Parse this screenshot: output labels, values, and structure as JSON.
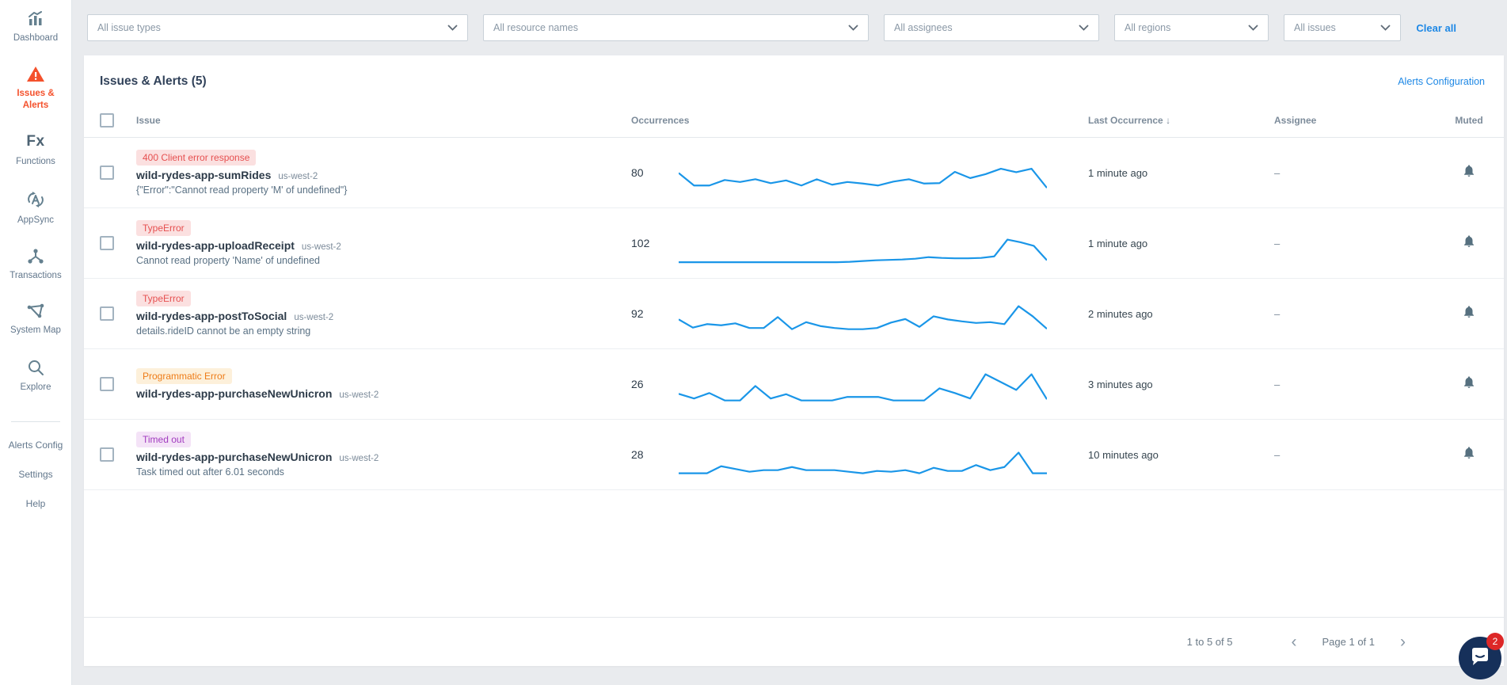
{
  "sidebar": {
    "items": [
      {
        "label": "Dashboard",
        "icon": "bar-chart-icon",
        "active": false
      },
      {
        "label": "Issues & Alerts",
        "icon": "warning-triangle-icon",
        "active": true
      },
      {
        "label": "Functions",
        "icon": "fx-icon",
        "active": false
      },
      {
        "label": "AppSync",
        "icon": "appsync-icon",
        "active": false
      },
      {
        "label": "Transactions",
        "icon": "transactions-icon",
        "active": false
      },
      {
        "label": "System Map",
        "icon": "system-map-icon",
        "active": false
      },
      {
        "label": "Explore",
        "icon": "search-icon",
        "active": false
      }
    ],
    "links": [
      "Alerts Config",
      "Settings",
      "Help"
    ]
  },
  "filters": {
    "dropdowns": [
      "All issue types",
      "All resource names",
      "All assignees",
      "All regions",
      "All issues"
    ],
    "clear_all_label": "Clear all"
  },
  "panel": {
    "title": "Issues & Alerts (5)",
    "alerts_config_link": "Alerts Configuration"
  },
  "table": {
    "columns": {
      "issue": "Issue",
      "occurrences": "Occurrences",
      "last_occurrence": "Last Occurrence",
      "sort_icon": "↓",
      "assignee": "Assignee",
      "muted": "Muted"
    },
    "rows": [
      {
        "badge": "400 Client error response",
        "badge_color": "red",
        "name": "wild-rydes-app-sumRides",
        "region": "us-west-2",
        "detail": "{\"Error\":\"Cannot read property 'M' of undefined\"}",
        "occurrences": "80",
        "last_occurrence": "1 minute ago",
        "assignee": "–",
        "sparkline": [
          52,
          20,
          20,
          34,
          29,
          36,
          26,
          33,
          20,
          36,
          22,
          29,
          25,
          20,
          30,
          36,
          25,
          26,
          55,
          39,
          49,
          63,
          54,
          63,
          14
        ]
      },
      {
        "badge": "TypeError",
        "badge_color": "red",
        "name": "wild-rydes-app-uploadReceipt",
        "region": "us-west-2",
        "detail": "Cannot read property 'Name' of undefined",
        "occurrences": "102",
        "last_occurrence": "1 minute ago",
        "assignee": "–",
        "sparkline": [
          4,
          4,
          4,
          4,
          4,
          4,
          4,
          4,
          4,
          4,
          4,
          4,
          4,
          5,
          7,
          9,
          10,
          11,
          13,
          17,
          15,
          14,
          14,
          15,
          19,
          62,
          55,
          46,
          9
        ]
      },
      {
        "badge": "TypeError",
        "badge_color": "red",
        "name": "wild-rydes-app-postToSocial",
        "region": "us-west-2",
        "detail": "details.rideID cannot be an empty string",
        "occurrences": "92",
        "last_occurrence": "2 minutes ago",
        "assignee": "–",
        "sparkline": [
          38,
          17,
          26,
          23,
          28,
          16,
          16,
          44,
          13,
          31,
          21,
          16,
          13,
          13,
          16,
          30,
          39,
          19,
          46,
          38,
          33,
          29,
          31,
          26,
          72,
          46,
          14
        ]
      },
      {
        "badge": "Programmatic Error",
        "badge_color": "orange",
        "name": "wild-rydes-app-purchaseNewUnicron",
        "region": "us-west-2",
        "detail": "",
        "occurrences": "26",
        "last_occurrence": "3 minutes ago",
        "assignee": "–",
        "sparkline": [
          28,
          16,
          30,
          11,
          11,
          48,
          16,
          27,
          11,
          11,
          11,
          20,
          20,
          20,
          11,
          11,
          11,
          42,
          30,
          16,
          78,
          58,
          38,
          78,
          14
        ]
      },
      {
        "badge": "Timed out",
        "badge_color": "purple",
        "name": "wild-rydes-app-purchaseNewUnicron",
        "region": "us-west-2",
        "detail": "Task timed out after 6.01 seconds",
        "occurrences": "28",
        "last_occurrence": "10 minutes ago",
        "assignee": "–",
        "sparkline": [
          5,
          5,
          5,
          23,
          16,
          9,
          13,
          13,
          21,
          13,
          13,
          13,
          9,
          5,
          11,
          9,
          13,
          5,
          19,
          11,
          11,
          26,
          13,
          21,
          58,
          5,
          5
        ]
      }
    ]
  },
  "footer": {
    "range": "1 to 5 of 5",
    "prev_icon": "‹",
    "page": "Page 1 of 1",
    "next_icon": "›"
  },
  "chat": {
    "unread": "2"
  },
  "colors": {
    "accent_blue": "#1e88e5",
    "sparkline_blue": "#1a96e8",
    "active_orange": "#f4512c",
    "badge_red_text": "#e65050",
    "badge_red_bg": "#fbe0e0",
    "badge_orange_text": "#ee7c18",
    "badge_orange_bg": "#fdf0da",
    "badge_purple_text": "#a13bbf",
    "badge_purple_bg": "#f4e3f7"
  }
}
